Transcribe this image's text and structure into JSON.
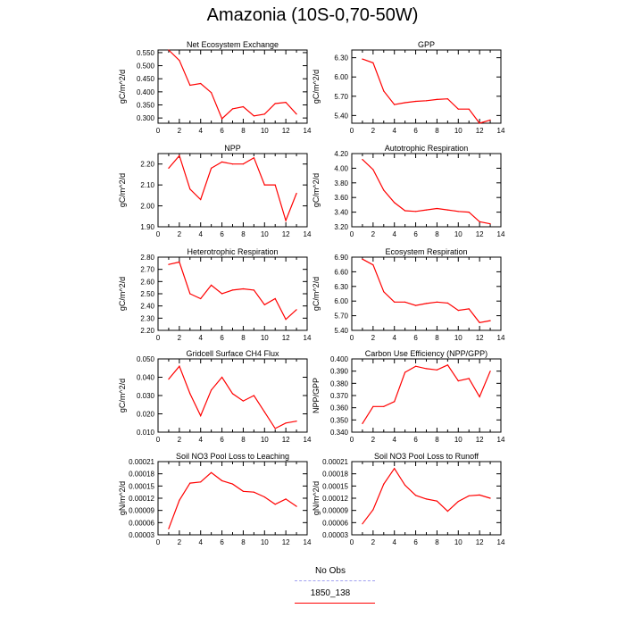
{
  "title": "Amazonia (10S-0,70-50W)",
  "legend": {
    "items": [
      {
        "label": "No Obs",
        "color": "#a0a0f0",
        "style": "dashed"
      },
      {
        "label": "1850_138",
        "color": "#ff0000",
        "style": "solid"
      }
    ]
  },
  "chart_data": [
    {
      "type": "line",
      "title": "Net Ecosystem Exchange",
      "ylabel": "gC/m^2/d",
      "xlim": [
        0,
        14
      ],
      "ylim": [
        0.28,
        0.56
      ],
      "xticks": [
        "0",
        "2",
        "4",
        "6",
        "8",
        "10",
        "12",
        "14"
      ],
      "yticks": [
        "0.300",
        "0.350",
        "0.400",
        "0.450",
        "0.500",
        "0.550"
      ],
      "ytick_values": [
        0.3,
        0.35,
        0.4,
        0.45,
        0.5,
        0.55
      ],
      "x": [
        1,
        2,
        3,
        4,
        5,
        6,
        7,
        8,
        9,
        10,
        11,
        12,
        13
      ],
      "series": [
        {
          "name": "1850_138",
          "color": "#ff0000",
          "values": [
            0.56,
            0.52,
            0.425,
            0.432,
            0.397,
            0.297,
            0.335,
            0.343,
            0.308,
            0.315,
            0.355,
            0.36,
            0.315
          ]
        }
      ]
    },
    {
      "type": "line",
      "title": "GPP",
      "ylabel": "gC/m^2/d",
      "xlim": [
        0,
        14
      ],
      "ylim": [
        5.28,
        6.42
      ],
      "xticks": [
        "0",
        "2",
        "4",
        "6",
        "8",
        "10",
        "12",
        "14"
      ],
      "yticks": [
        "5.40",
        "5.70",
        "6.00",
        "6.30"
      ],
      "ytick_values": [
        5.4,
        5.7,
        6.0,
        6.3
      ],
      "x": [
        1,
        2,
        3,
        4,
        5,
        6,
        7,
        8,
        9,
        10,
        11,
        12,
        13
      ],
      "series": [
        {
          "name": "1850_138",
          "color": "#ff0000",
          "values": [
            6.28,
            6.22,
            5.78,
            5.57,
            5.6,
            5.62,
            5.63,
            5.65,
            5.66,
            5.5,
            5.5,
            5.28,
            5.33
          ]
        }
      ]
    },
    {
      "type": "line",
      "title": "NPP",
      "ylabel": "gC/m^2/d",
      "xlim": [
        0,
        14
      ],
      "ylim": [
        1.9,
        2.25
      ],
      "xticks": [
        "0",
        "2",
        "4",
        "6",
        "8",
        "10",
        "12",
        "14"
      ],
      "yticks": [
        "1.90",
        "2.00",
        "2.10",
        "2.20"
      ],
      "ytick_values": [
        1.9,
        2.0,
        2.1,
        2.2
      ],
      "x": [
        1,
        2,
        3,
        4,
        5,
        6,
        7,
        8,
        9,
        10,
        11,
        12,
        13
      ],
      "series": [
        {
          "name": "1850_138",
          "color": "#ff0000",
          "values": [
            2.18,
            2.24,
            2.08,
            2.03,
            2.18,
            2.21,
            2.2,
            2.2,
            2.23,
            2.1,
            2.1,
            1.93,
            2.06
          ]
        }
      ]
    },
    {
      "type": "line",
      "title": "Autotrophic Respiration",
      "ylabel": "gC/m^2/d",
      "xlim": [
        0,
        14
      ],
      "ylim": [
        3.2,
        4.2
      ],
      "xticks": [
        "0",
        "2",
        "4",
        "6",
        "8",
        "10",
        "12",
        "14"
      ],
      "yticks": [
        "3.20",
        "3.40",
        "3.60",
        "3.80",
        "4.00",
        "4.20"
      ],
      "ytick_values": [
        3.2,
        3.4,
        3.6,
        3.8,
        4.0,
        4.2
      ],
      "x": [
        1,
        2,
        3,
        4,
        5,
        6,
        7,
        8,
        9,
        10,
        11,
        12,
        13
      ],
      "series": [
        {
          "name": "1850_138",
          "color": "#ff0000",
          "values": [
            4.12,
            3.98,
            3.7,
            3.53,
            3.42,
            3.41,
            3.43,
            3.45,
            3.43,
            3.41,
            3.4,
            3.27,
            3.24
          ]
        }
      ]
    },
    {
      "type": "line",
      "title": "Heterotrophic Respiration",
      "ylabel": "gC/m^2/d",
      "xlim": [
        0,
        14
      ],
      "ylim": [
        2.2,
        2.8
      ],
      "xticks": [
        "0",
        "2",
        "4",
        "6",
        "8",
        "10",
        "12",
        "14"
      ],
      "yticks": [
        "2.20",
        "2.30",
        "2.40",
        "2.50",
        "2.60",
        "2.70",
        "2.80"
      ],
      "ytick_values": [
        2.2,
        2.3,
        2.4,
        2.5,
        2.6,
        2.7,
        2.8
      ],
      "x": [
        1,
        2,
        3,
        4,
        5,
        6,
        7,
        8,
        9,
        10,
        11,
        12,
        13
      ],
      "series": [
        {
          "name": "1850_138",
          "color": "#ff0000",
          "values": [
            2.74,
            2.76,
            2.5,
            2.46,
            2.57,
            2.5,
            2.53,
            2.54,
            2.53,
            2.41,
            2.46,
            2.29,
            2.37
          ]
        }
      ]
    },
    {
      "type": "line",
      "title": "Ecosystem Respiration",
      "ylabel": "gC/m^2/d",
      "xlim": [
        0,
        14
      ],
      "ylim": [
        5.4,
        6.9
      ],
      "xticks": [
        "0",
        "2",
        "4",
        "6",
        "8",
        "10",
        "12",
        "14"
      ],
      "yticks": [
        "5.40",
        "5.70",
        "6.00",
        "6.30",
        "6.60",
        "6.90"
      ],
      "ytick_values": [
        5.4,
        5.7,
        6.0,
        6.3,
        6.6,
        6.9
      ],
      "x": [
        1,
        2,
        3,
        4,
        5,
        6,
        7,
        8,
        9,
        10,
        11,
        12,
        13
      ],
      "series": [
        {
          "name": "1850_138",
          "color": "#ff0000",
          "values": [
            6.86,
            6.74,
            6.19,
            5.98,
            5.98,
            5.91,
            5.95,
            5.98,
            5.96,
            5.81,
            5.84,
            5.56,
            5.6
          ]
        }
      ]
    },
    {
      "type": "line",
      "title": "Gridcell Surface CH4 Flux",
      "ylabel": "gC/m^2/d",
      "xlim": [
        0,
        14
      ],
      "ylim": [
        0.01,
        0.05
      ],
      "xticks": [
        "0",
        "2",
        "4",
        "6",
        "8",
        "10",
        "12",
        "14"
      ],
      "yticks": [
        "0.010",
        "0.020",
        "0.030",
        "0.040",
        "0.050"
      ],
      "ytick_values": [
        0.01,
        0.02,
        0.03,
        0.04,
        0.05
      ],
      "x": [
        1,
        2,
        3,
        4,
        5,
        6,
        7,
        8,
        9,
        10,
        11,
        12,
        13
      ],
      "series": [
        {
          "name": "1850_138",
          "color": "#ff0000",
          "values": [
            0.039,
            0.046,
            0.031,
            0.019,
            0.033,
            0.04,
            0.031,
            0.027,
            0.03,
            0.021,
            0.012,
            0.015,
            0.016
          ]
        }
      ]
    },
    {
      "type": "line",
      "title": "Carbon Use Efficiency (NPP/GPP)",
      "ylabel": "NPP/GPP",
      "xlim": [
        0,
        14
      ],
      "ylim": [
        0.34,
        0.4
      ],
      "xticks": [
        "0",
        "2",
        "4",
        "6",
        "8",
        "10",
        "12",
        "14"
      ],
      "yticks": [
        "0.340",
        "0.350",
        "0.360",
        "0.370",
        "0.380",
        "0.390",
        "0.400"
      ],
      "ytick_values": [
        0.34,
        0.35,
        0.36,
        0.37,
        0.38,
        0.39,
        0.4
      ],
      "x": [
        1,
        2,
        3,
        4,
        5,
        6,
        7,
        8,
        9,
        10,
        11,
        12,
        13
      ],
      "series": [
        {
          "name": "1850_138",
          "color": "#ff0000",
          "values": [
            0.347,
            0.361,
            0.361,
            0.365,
            0.389,
            0.394,
            0.392,
            0.391,
            0.395,
            0.382,
            0.384,
            0.369,
            0.39
          ]
        }
      ]
    },
    {
      "type": "line",
      "title": "Soil NO3 Pool Loss to Leaching",
      "ylabel": "gN/m^2/d",
      "xlim": [
        0,
        14
      ],
      "ylim": [
        3e-05,
        0.00021
      ],
      "xticks": [
        "0",
        "2",
        "4",
        "6",
        "8",
        "10",
        "12",
        "14"
      ],
      "yticks": [
        "0.00003",
        "0.00006",
        "0.00009",
        "0.00012",
        "0.00015",
        "0.00018",
        "0.00021"
      ],
      "ytick_values": [
        3e-05,
        6e-05,
        9e-05,
        0.00012,
        0.00015,
        0.00018,
        0.00021
      ],
      "x": [
        1,
        2,
        3,
        4,
        5,
        6,
        7,
        8,
        9,
        10,
        11,
        12,
        13
      ],
      "series": [
        {
          "name": "1850_138",
          "color": "#ff0000",
          "values": [
            4.5e-05,
            0.000115,
            0.000157,
            0.00016,
            0.000183,
            0.000163,
            0.000155,
            0.000137,
            0.000135,
            0.000123,
            0.000105,
            0.000118,
            0.0001
          ]
        }
      ]
    },
    {
      "type": "line",
      "title": "Soil NO3 Pool Loss to Runoff",
      "ylabel": "gN/m^2/d",
      "xlim": [
        0,
        14
      ],
      "ylim": [
        3e-05,
        0.00021
      ],
      "xticks": [
        "0",
        "2",
        "4",
        "6",
        "8",
        "10",
        "12",
        "14"
      ],
      "yticks": [
        "0.00003",
        "0.00006",
        "0.00009",
        "0.00012",
        "0.00015",
        "0.00018",
        "0.00021"
      ],
      "ytick_values": [
        3e-05,
        6e-05,
        9e-05,
        0.00012,
        0.00015,
        0.00018,
        0.00021
      ],
      "x": [
        1,
        2,
        3,
        4,
        5,
        6,
        7,
        8,
        9,
        10,
        11,
        12,
        13
      ],
      "series": [
        {
          "name": "1850_138",
          "color": "#ff0000",
          "values": [
            5.7e-05,
            9.2e-05,
            0.000155,
            0.000193,
            0.000152,
            0.000127,
            0.000118,
            0.000113,
            8.8e-05,
            0.000112,
            0.000126,
            0.000128,
            0.00012
          ]
        }
      ]
    }
  ]
}
